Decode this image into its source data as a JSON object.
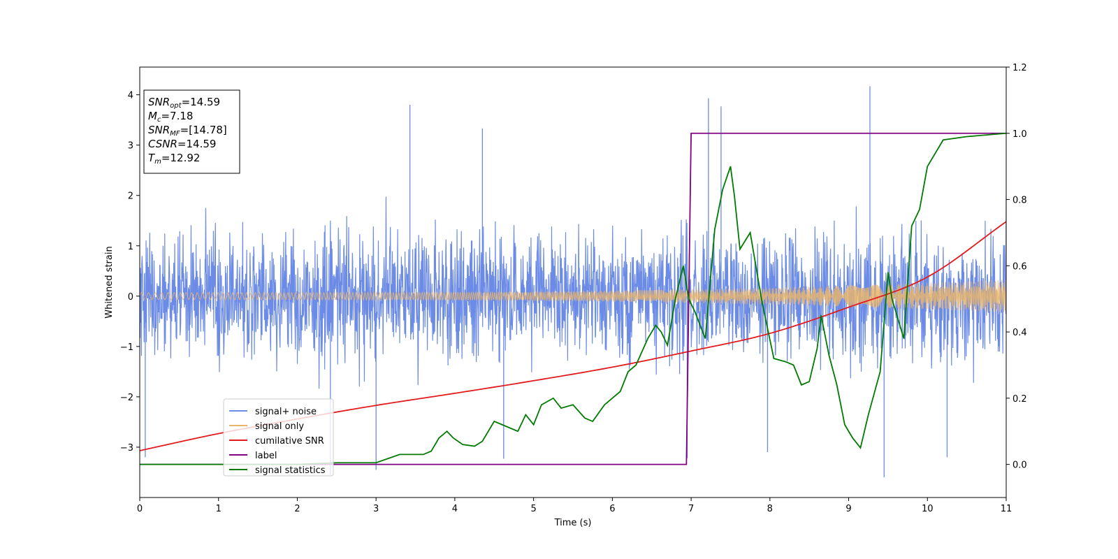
{
  "chart_data": {
    "type": "line",
    "title": "",
    "xlabel": "Time (s)",
    "ylabel": "Whitened strain",
    "xlim": [
      0,
      11
    ],
    "ylim_left": [
      -4.0,
      4.55
    ],
    "ylim_right": [
      -0.1,
      1.2
    ],
    "x_ticks": [
      0,
      1,
      2,
      3,
      4,
      5,
      6,
      7,
      8,
      9,
      10,
      11
    ],
    "x_tick_labels": [
      "0",
      "1",
      "2",
      "3",
      "4",
      "5",
      "6",
      "7",
      "8",
      "9",
      "10",
      "11"
    ],
    "y_ticks_left": [
      -3,
      -2,
      -1,
      0,
      1,
      2,
      3,
      4
    ],
    "y_tick_labels_left": [
      "−3",
      "−2",
      "−1",
      "0",
      "1",
      "2",
      "3",
      "4"
    ],
    "y_ticks_right": [
      0.0,
      0.2,
      0.4,
      0.6,
      0.8,
      1.0,
      1.2
    ],
    "y_tick_labels_right": [
      "0.0",
      "0.2",
      "0.4",
      "0.6",
      "0.8",
      "1.0",
      "1.2"
    ],
    "grid": false,
    "legend_position": "lower-left",
    "colors": {
      "signal_noise": "#6b8be6",
      "signal_only": "#e8b46c",
      "cumulative_snr": "#e41a1c",
      "label": "#800080",
      "statistics": "#007a00"
    },
    "annotation_lines": [
      {
        "base": "SNR",
        "sub": "opt",
        "rest": "=14.59"
      },
      {
        "base": "M",
        "sub": "c",
        "rest": "=7.18"
      },
      {
        "base": "SNR",
        "sub": "MF",
        "rest": "=[14.78]"
      },
      {
        "base": "CSNR",
        "sub": "",
        "rest": "=14.59"
      },
      {
        "base": "T",
        "sub": "m",
        "rest": "=12.92"
      }
    ],
    "series": [
      {
        "name": "signal+ noise",
        "axis": "left",
        "kind": "noise",
        "noise_band": [
          -2.6,
          2.6
        ],
        "notable_spikes": [
          {
            "x": 3.43,
            "y": 3.8
          },
          {
            "x": 4.35,
            "y": 3.33
          },
          {
            "x": 7.22,
            "y": 3.93
          },
          {
            "x": 7.38,
            "y": 3.77
          },
          {
            "x": 9.27,
            "y": 4.17
          },
          {
            "x": 9.45,
            "y": -3.6
          },
          {
            "x": 0.07,
            "y": -3.2
          },
          {
            "x": 2.42,
            "y": -3.55
          },
          {
            "x": 3.0,
            "y": -3.45
          },
          {
            "x": 4.62,
            "y": -3.23
          },
          {
            "x": 6.95,
            "y": -3.22
          },
          {
            "x": 7.97,
            "y": -3.1
          },
          {
            "x": 10.25,
            "y": -3.2
          }
        ]
      },
      {
        "name": "signal only",
        "axis": "left",
        "kind": "chirp",
        "amplitude_start": 0.07,
        "amplitude_end": 0.33
      },
      {
        "name": "cumilative SNR",
        "axis": "left",
        "x": [
          0,
          1,
          2,
          3,
          4,
          5,
          6,
          7,
          8,
          9,
          10,
          11
        ],
        "y": [
          -3.07,
          -2.73,
          -2.44,
          -2.17,
          -1.93,
          -1.68,
          -1.41,
          -1.09,
          -0.74,
          -0.22,
          0.38,
          1.48
        ]
      },
      {
        "name": "label",
        "axis": "right",
        "x": [
          0,
          6.94,
          7.0,
          11
        ],
        "y": [
          0,
          0,
          1,
          1
        ]
      },
      {
        "name": "signal statistics",
        "axis": "right",
        "x": [
          0,
          1.0,
          2.0,
          2.5,
          3.0,
          3.3,
          3.6,
          3.7,
          3.8,
          3.9,
          3.98,
          4.1,
          4.25,
          4.35,
          4.5,
          4.6,
          4.8,
          4.9,
          5.0,
          5.1,
          5.25,
          5.35,
          5.5,
          5.65,
          5.75,
          5.9,
          6.0,
          6.1,
          6.2,
          6.3,
          6.45,
          6.55,
          6.62,
          6.7,
          6.8,
          6.9,
          6.97,
          7.05,
          7.18,
          7.3,
          7.4,
          7.5,
          7.55,
          7.62,
          7.75,
          7.9,
          8.05,
          8.2,
          8.3,
          8.4,
          8.5,
          8.6,
          8.65,
          8.75,
          8.85,
          8.95,
          9.05,
          9.15,
          9.25,
          9.4,
          9.5,
          9.55,
          9.7,
          9.8,
          9.9,
          10.0,
          10.2,
          10.5,
          11.0
        ],
        "y": [
          0,
          0,
          0,
          0.005,
          0.005,
          0.03,
          0.03,
          0.04,
          0.08,
          0.1,
          0.08,
          0.06,
          0.055,
          0.07,
          0.13,
          0.12,
          0.1,
          0.15,
          0.12,
          0.18,
          0.2,
          0.17,
          0.18,
          0.14,
          0.13,
          0.18,
          0.2,
          0.22,
          0.28,
          0.3,
          0.38,
          0.42,
          0.4,
          0.36,
          0.5,
          0.6,
          0.5,
          0.46,
          0.38,
          0.71,
          0.83,
          0.9,
          0.81,
          0.65,
          0.7,
          0.49,
          0.32,
          0.31,
          0.3,
          0.24,
          0.25,
          0.35,
          0.45,
          0.33,
          0.24,
          0.12,
          0.08,
          0.05,
          0.15,
          0.28,
          0.58,
          0.5,
          0.38,
          0.72,
          0.77,
          0.9,
          0.98,
          0.99,
          1.0
        ]
      }
    ]
  }
}
